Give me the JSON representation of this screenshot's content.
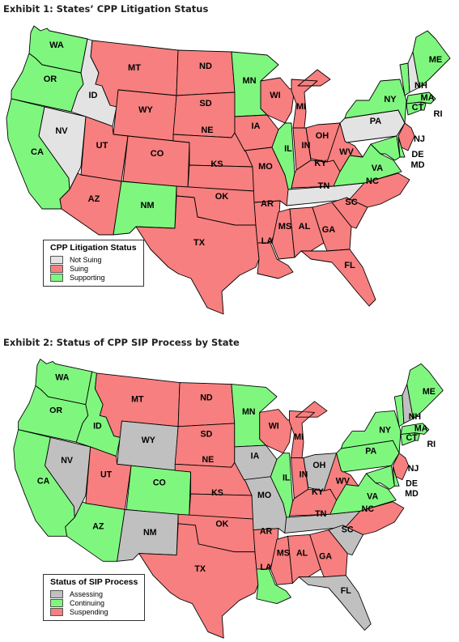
{
  "colors": {
    "suing": "#f77f7f",
    "supporting": "#7ff77f",
    "not_suing": "#e3e3e3",
    "assessing": "#c0c0c0",
    "continuing": "#7ff77f",
    "suspending": "#f77f7f"
  },
  "exhibit1": {
    "title": "Exhibit 1: States’ CPP Litigation Status",
    "legend_title": "CPP Litigation Status",
    "legend": [
      {
        "key": "not_suing",
        "label": "Not Suing"
      },
      {
        "key": "suing",
        "label": "Suing"
      },
      {
        "key": "supporting",
        "label": "Supporting"
      }
    ],
    "status": {
      "WA": "supporting",
      "OR": "supporting",
      "CA": "supporting",
      "ID": "not_suing",
      "NV": "not_suing",
      "MT": "suing",
      "WY": "suing",
      "UT": "suing",
      "AZ": "suing",
      "CO": "suing",
      "NM": "supporting",
      "ND": "suing",
      "SD": "suing",
      "NE": "suing",
      "KS": "suing",
      "OK": "suing",
      "TX": "suing",
      "MN": "supporting",
      "IA": "suing",
      "MO": "suing",
      "AR": "suing",
      "LA": "suing",
      "WI": "suing",
      "IL": "supporting",
      "MI": "suing",
      "IN": "suing",
      "OH": "suing",
      "KY": "suing",
      "TN": "not_suing",
      "MS": "suing",
      "AL": "suing",
      "GA": "suing",
      "FL": "suing",
      "SC": "suing",
      "NC": "suing",
      "VA": "supporting",
      "WV": "suing",
      "PA": "not_suing",
      "NY": "supporting",
      "NJ": "suing",
      "DE": "supporting",
      "MD": "supporting",
      "CT": "supporting",
      "RI": "supporting",
      "MA": "supporting",
      "VT": "supporting",
      "NH": "not_suing",
      "ME": "supporting"
    }
  },
  "exhibit2": {
    "title": "Exhibit 2: Status of CPP SIP Process by State",
    "legend_title": "Status of SIP Process",
    "legend": [
      {
        "key": "assessing",
        "label": "Assessing"
      },
      {
        "key": "continuing",
        "label": "Continuing"
      },
      {
        "key": "suspending",
        "label": "Suspending"
      }
    ],
    "status": {
      "WA": "continuing",
      "OR": "continuing",
      "CA": "continuing",
      "ID": "continuing",
      "NV": "assessing",
      "MT": "suspending",
      "WY": "assessing",
      "UT": "suspending",
      "AZ": "continuing",
      "CO": "continuing",
      "NM": "assessing",
      "ND": "suspending",
      "SD": "suspending",
      "NE": "suspending",
      "KS": "suspending",
      "OK": "suspending",
      "TX": "suspending",
      "MN": "continuing",
      "IA": "assessing",
      "MO": "assessing",
      "AR": "suspending",
      "LA": "continuing",
      "WI": "suspending",
      "IL": "continuing",
      "MI": "suspending",
      "IN": "suspending",
      "OH": "assessing",
      "KY": "suspending",
      "TN": "assessing",
      "MS": "suspending",
      "AL": "suspending",
      "GA": "suspending",
      "FL": "assessing",
      "SC": "assessing",
      "NC": "suspending",
      "VA": "continuing",
      "WV": "suspending",
      "PA": "continuing",
      "NY": "continuing",
      "NJ": "suspending",
      "DE": "continuing",
      "MD": "continuing",
      "CT": "continuing",
      "RI": "continuing",
      "MA": "continuing",
      "VT": "continuing",
      "NH": "assessing",
      "ME": "continuing"
    }
  }
}
